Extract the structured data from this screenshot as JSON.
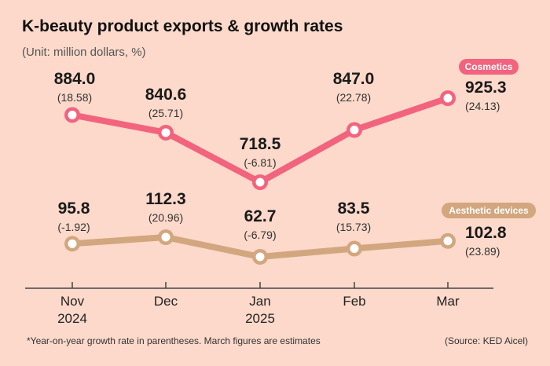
{
  "header": {
    "title": "K-beauty product exports & growth rates",
    "subtitle": "(Unit: million dollars, %)"
  },
  "footer": {
    "note": "*Year-on-year growth rate in parentheses. March figures are estimates",
    "source": "(Source: KED Aicel)"
  },
  "colors": {
    "background": "#fcd9ca",
    "cosmetics": "#f2637e",
    "aesthetic": "#d2a67f"
  },
  "chart_data": {
    "type": "line",
    "title": "K-beauty product exports & growth rates",
    "unit": "(Unit: million dollars, %)",
    "categories": [
      {
        "month": "Nov",
        "year": "2024"
      },
      {
        "month": "Dec",
        "year": ""
      },
      {
        "month": "Jan",
        "year": "2025"
      },
      {
        "month": "Feb",
        "year": ""
      },
      {
        "month": "Mar",
        "year": ""
      }
    ],
    "series": [
      {
        "name": "Cosmetics",
        "values": [
          884.0,
          840.6,
          718.5,
          847.0,
          925.3
        ],
        "value_labels": [
          "884.0",
          "840.6",
          "718.5",
          "847.0",
          "925.3"
        ],
        "growth_labels": [
          "(18.58)",
          "(25.71)",
          "(-6.81)",
          "(22.78)",
          "(24.13)"
        ]
      },
      {
        "name": "Aesthetic devices",
        "values": [
          95.8,
          112.3,
          62.7,
          83.5,
          102.8
        ],
        "value_labels": [
          "95.8",
          "112.3",
          "62.7",
          "83.5",
          "102.8"
        ],
        "growth_labels": [
          "(-1.92)",
          "(20.96)",
          "(-6.79)",
          "(15.73)",
          "(23.89)"
        ]
      }
    ],
    "grid": false
  }
}
